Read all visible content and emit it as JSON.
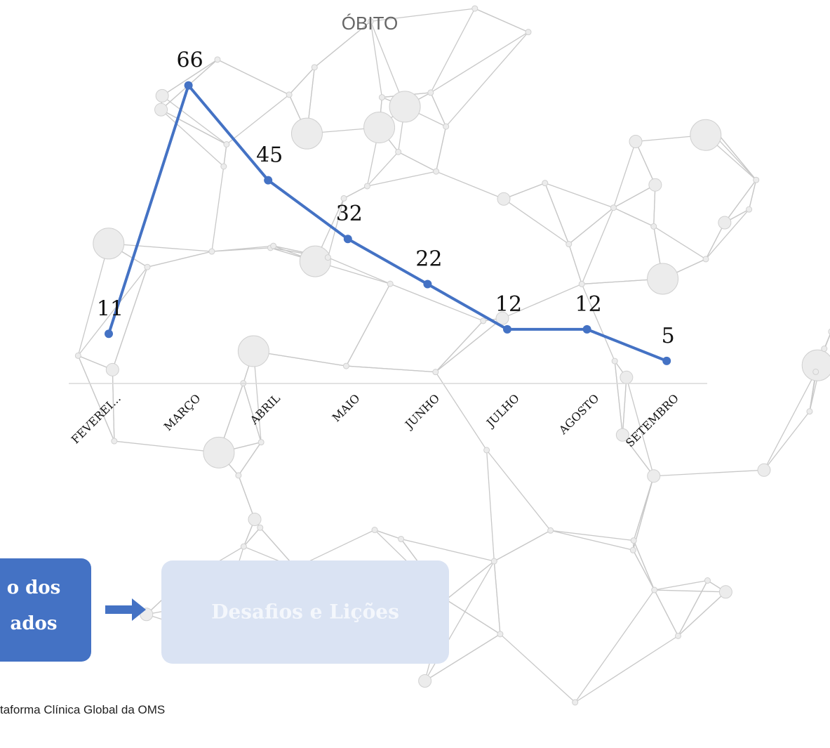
{
  "chart_data": {
    "type": "line",
    "title": "ÓBITO",
    "categories": [
      "FEVEREI...",
      "MARÇO",
      "ABRIL",
      "MAIO",
      "JUNHO",
      "JULHO",
      "AGOSTO",
      "SETEMBRO"
    ],
    "values": [
      11,
      66,
      45,
      32,
      22,
      12,
      12,
      5
    ],
    "color": "#4472c4"
  },
  "flow": {
    "current": [
      "o dos",
      "ados"
    ],
    "next": "Desafios e Lições"
  },
  "footer": "taforma Clínica Global da OMS"
}
